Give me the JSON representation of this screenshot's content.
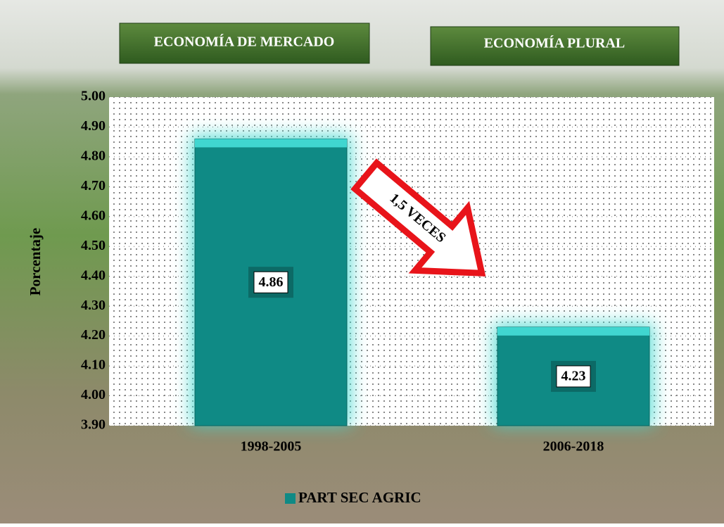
{
  "chart_data": {
    "type": "bar",
    "headers": [
      "ECONOMÍA DE MERCADO",
      "ECONOMÍA PLURAL"
    ],
    "annotation": "1,5 VECES",
    "y_label": "Porcentaje",
    "categories": [
      "1998-2005",
      "2006-2018"
    ],
    "series": [
      {
        "name": "PART SEC AGRIC",
        "color": "#0f8a85",
        "values": [
          4.86,
          4.23
        ]
      }
    ],
    "ylim": [
      3.9,
      5.0
    ],
    "yticks": [
      {
        "value": 3.9,
        "label": "3.90"
      },
      {
        "value": 4.0,
        "label": "4.00"
      },
      {
        "value": 4.1,
        "label": "4.10"
      },
      {
        "value": 4.2,
        "label": "4.20"
      },
      {
        "value": 4.3,
        "label": "4.30"
      },
      {
        "value": 4.4,
        "label": "4.40"
      },
      {
        "value": 4.5,
        "label": "4.50"
      },
      {
        "value": 4.6,
        "label": "4.60"
      },
      {
        "value": 4.7,
        "label": "4.70"
      },
      {
        "value": 4.8,
        "label": "4.80"
      },
      {
        "value": 4.9,
        "label": "4.90"
      },
      {
        "value": 5.0,
        "label": "5.00"
      }
    ],
    "grid": true
  }
}
